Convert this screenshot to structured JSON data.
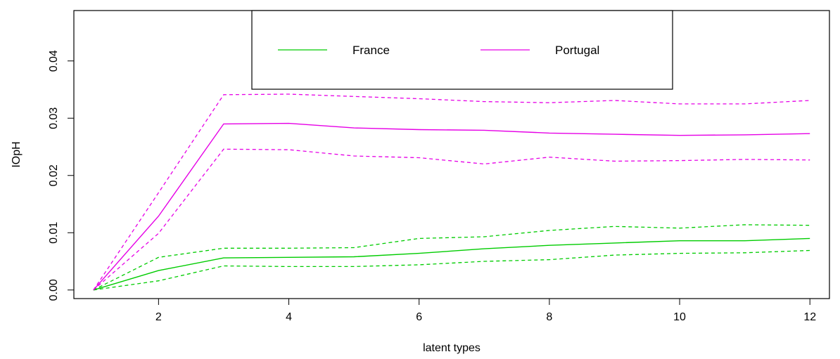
{
  "chart_data": {
    "type": "line",
    "title": "",
    "xlabel": "latent types",
    "ylabel": "IOpH",
    "xlim": [
      0.7,
      12.3
    ],
    "ylim": [
      -0.0015,
      0.0488
    ],
    "x_ticks": [
      2,
      4,
      6,
      8,
      10,
      12
    ],
    "y_ticks": [
      0.0,
      0.01,
      0.02,
      0.03,
      0.04
    ],
    "y_tick_labels": [
      "0.00",
      "0.01",
      "0.02",
      "0.03",
      "0.04"
    ],
    "legend_position": "top-center",
    "grid": false,
    "x": [
      1,
      2,
      3,
      4,
      5,
      6,
      7,
      8,
      9,
      10,
      11,
      12
    ],
    "series": [
      {
        "name": "France",
        "color": "#00cc00",
        "values": [
          0.0,
          0.0034,
          0.0056,
          0.0057,
          0.0058,
          0.0064,
          0.0072,
          0.0078,
          0.0082,
          0.0086,
          0.0086,
          0.009
        ],
        "lower": [
          0.0,
          0.0016,
          0.0042,
          0.0041,
          0.0041,
          0.0044,
          0.005,
          0.0053,
          0.0061,
          0.0064,
          0.0065,
          0.0069
        ],
        "upper": [
          0.0,
          0.0057,
          0.0073,
          0.0073,
          0.0074,
          0.009,
          0.0093,
          0.0104,
          0.0111,
          0.0108,
          0.0114,
          0.0113
        ]
      },
      {
        "name": "Portugal",
        "color": "#e600e6",
        "values": [
          0.0,
          0.0129,
          0.029,
          0.0291,
          0.0283,
          0.028,
          0.0279,
          0.0274,
          0.0272,
          0.027,
          0.0271,
          0.0273
        ],
        "lower": [
          0.0,
          0.0099,
          0.0246,
          0.0245,
          0.0234,
          0.0231,
          0.022,
          0.0232,
          0.0225,
          0.0226,
          0.0228,
          0.0227
        ],
        "upper": [
          0.0,
          0.017,
          0.0341,
          0.0342,
          0.0338,
          0.0334,
          0.0329,
          0.0327,
          0.0331,
          0.0325,
          0.0325,
          0.0331
        ]
      }
    ]
  }
}
